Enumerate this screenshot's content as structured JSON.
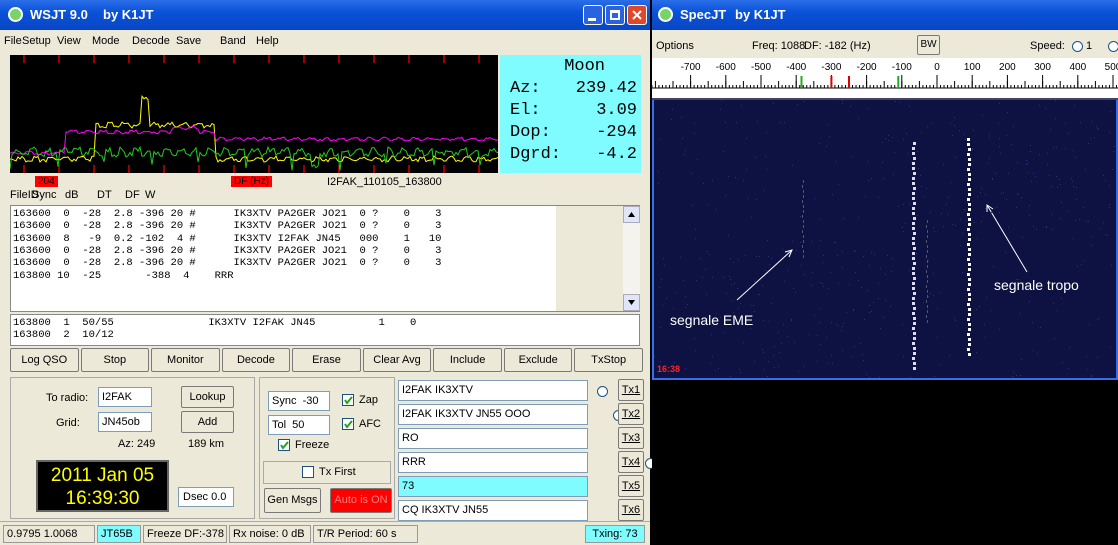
{
  "wsjt": {
    "title": "WSJT 9.0",
    "author": "by K1JT",
    "menu": [
      "File",
      "Setup",
      "View",
      "Mode",
      "Decode",
      "Save",
      "Band",
      "Help"
    ],
    "moon": {
      "title": "Moon",
      "rows": [
        [
          "Az:",
          "239.42"
        ],
        [
          "El:",
          "3.09"
        ],
        [
          "Dop:",
          "-294"
        ],
        [
          "Dgrd:",
          "-4.2"
        ]
      ]
    },
    "plot_labels": {
      "left": "204",
      "df": "DF (Hz)",
      "file": "I2FAK_110105_163800"
    },
    "columns": [
      "FileID",
      "Sync",
      "dB",
      "DT",
      "DF",
      "W"
    ],
    "decodes": [
      "163600  0  -28  2.8 -396 20 #      IK3XTV PA2GER JO21  0 ?    0    3",
      "163600  0  -28  2.8 -396 20 #      IK3XTV PA2GER JO21  0 ?    0    3",
      "163600  8   -9  0.2 -102  4 #      IK3XTV I2FAK JN45   000    1   10",
      "163600  0  -28  2.8 -396 20 #      IK3XTV PA2GER JO21  0 ?    0    3",
      "163600  0  -28  2.8 -396 20 #      IK3XTV PA2GER JO21  0 ?    0    3",
      "163800 10  -25       -388  4    RRR"
    ],
    "averages": [
      "163800  1  50/55               IK3XTV I2FAK JN45          1    0",
      "163800  2  10/12"
    ],
    "buttons": [
      "Log QSO",
      "Stop",
      "Monitor",
      "Decode",
      "Erase",
      "Clear Avg",
      "Include",
      "Exclude",
      "TxStop"
    ],
    "station": {
      "to_radio_label": "To radio:",
      "to_radio": "I2FAK",
      "lookup": "Lookup",
      "grid_label": "Grid:",
      "grid": "JN45ob",
      "add": "Add",
      "az": "Az: 249",
      "dist": "189 km"
    },
    "clock": {
      "date": "2011 Jan 05",
      "time": "16:39:30"
    },
    "dsec": "Dsec 0.0",
    "options": {
      "sync": "Sync  -30",
      "zap": "Zap",
      "tol": "Tol  50",
      "afc": "AFC",
      "freeze": "Freeze",
      "tx_first": "Tx First",
      "gen_msgs": "Gen Msgs",
      "auto": "Auto is  ON"
    },
    "messages": [
      {
        "text": "I2FAK IK3XTV",
        "button": "Tx1"
      },
      {
        "text": "I2FAK IK3XTV JN55 OOO",
        "button": "Tx2"
      },
      {
        "text": "RO",
        "button": "Tx3"
      },
      {
        "text": "RRR",
        "button": "Tx4"
      },
      {
        "text": "73",
        "button": "Tx5"
      },
      {
        "text": "CQ IK3XTV JN55",
        "button": "Tx6"
      }
    ],
    "selected_message": 4,
    "status": [
      "0.9795 1.0068",
      "JT65B",
      "Freeze DF:-378",
      "Rx noise: 0 dB",
      "T/R Period: 60 s"
    ],
    "txing": "Txing: 73"
  },
  "spec": {
    "title": "SpecJT",
    "author": "by K1JT",
    "options": "Options",
    "freq": "Freq: 1088",
    "df": "DF: -182 (Hz)",
    "bw": "BW",
    "nav": [
      "<",
      "|",
      ">"
    ],
    "speed": "Speed:",
    "speed_value": "1",
    "scale": [
      -700,
      -600,
      -500,
      -400,
      -300,
      -200,
      -100,
      0,
      100,
      200,
      300,
      400,
      500
    ],
    "annotations": {
      "eme": "segnale EME",
      "tropo": "segnale tropo",
      "time": "16:38"
    }
  }
}
